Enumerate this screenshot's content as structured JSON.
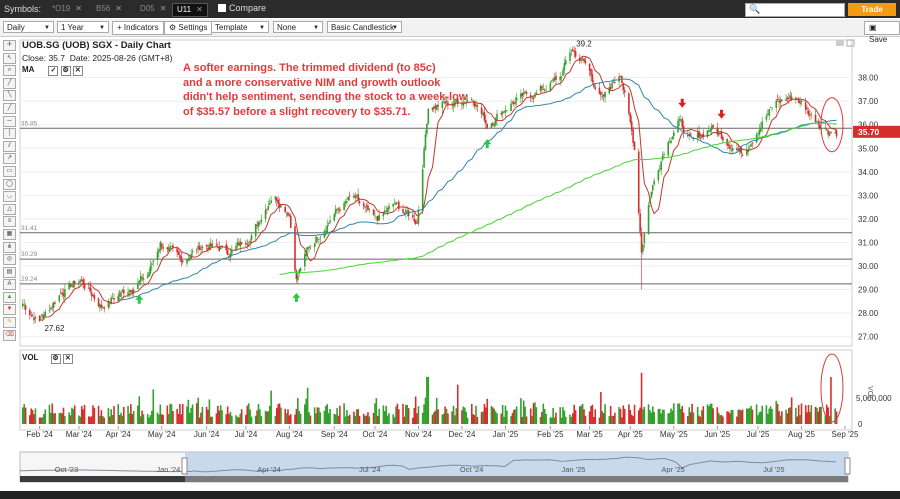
{
  "topbar": {
    "symbols_label": "Symbols:",
    "tabs": [
      {
        "label": "*O19",
        "active": false
      },
      {
        "label": "B56",
        "active": false
      },
      {
        "label": "D05",
        "active": false
      },
      {
        "label": "U11",
        "active": true
      }
    ],
    "compare_label": "Compare",
    "search_value": "",
    "trade_label": "Trade"
  },
  "toolbar": {
    "interval": "Daily",
    "range": "1 Year",
    "indicators_label": "Indicators",
    "settings_label": "Settings",
    "template": "Template",
    "overlay": "None",
    "chart_style": "Basic Candlestick",
    "save_label": "Save"
  },
  "chart_info": {
    "title": "UOB.SG (UOB) SGX - Daily Chart",
    "close": "Close: 35.7",
    "date": "Date: 2025-08-26 (GMT+8)",
    "ma_label": "MA"
  },
  "annotation": "A softer earnings. The trimmed dividend (to 85c)\nand a more conservative NIM and growth outlook\n didn't help sentiment, sending the stock to a week-low\nof $35.57 before a slight recovery to $35.71.",
  "colors": {
    "up": "#33a02c",
    "down": "#d62d2d",
    "ma_short": "#c0392b",
    "ma_mid": "#2e86ab",
    "ma_long": "#44d62c",
    "price_tag": "#d62d2d",
    "annotation": "#e03b3b"
  },
  "chart_data": [
    {
      "type": "candlestick",
      "title": "UOB.SG (UOB) SGX - Daily Chart",
      "y_ticks": [
        "27.00",
        "28.00",
        "29.00",
        "30.00",
        "31.00",
        "32.00",
        "33.00",
        "34.00",
        "35.00",
        "36.00",
        "37.00",
        "38.00"
      ],
      "ylim": [
        26.6,
        39.6
      ],
      "x_ticks": [
        "Feb '24",
        "Mar '24",
        "Apr '24",
        "May '24",
        "Jun '24",
        "Jul '24",
        "Aug '24",
        "Sep '24",
        "Oct '24",
        "Nov '24",
        "Dec '24",
        "Jan '25",
        "Feb '25",
        "Mar '25",
        "Apr '25",
        "May '25",
        "Jun '25",
        "Jul '25",
        "Aug '25",
        "Sep '25"
      ],
      "price_label": "35.70",
      "last_close": 35.7,
      "annotations": [
        {
          "text": "27.62",
          "value": 27.62
        },
        {
          "text": "39.2",
          "value": 39.2
        }
      ],
      "horizontal_levels": [
        {
          "label": "35.85",
          "value": 35.85
        },
        {
          "label": "31.41",
          "value": 31.41
        },
        {
          "label": "30.29",
          "value": 30.29
        },
        {
          "label": "29.24",
          "value": 29.24
        }
      ],
      "close_path": [
        [
          "2024-01-24",
          28.4
        ],
        [
          "2024-02-05",
          27.62
        ],
        [
          "2024-02-20",
          28.9
        ],
        [
          "2024-03-05",
          29.4
        ],
        [
          "2024-03-20",
          28.3
        ],
        [
          "2024-04-05",
          28.9
        ],
        [
          "2024-04-22",
          29.6
        ],
        [
          "2024-05-01",
          31.0
        ],
        [
          "2024-05-15",
          30.2
        ],
        [
          "2024-06-01",
          30.9
        ],
        [
          "2024-06-20",
          30.6
        ],
        [
          "2024-07-05",
          31.3
        ],
        [
          "2024-07-20",
          33.1
        ],
        [
          "2024-08-01",
          32.3
        ],
        [
          "2024-08-06",
          29.5
        ],
        [
          "2024-08-15",
          30.8
        ],
        [
          "2024-09-01",
          32.2
        ],
        [
          "2024-09-15",
          32.9
        ],
        [
          "2024-10-01",
          31.9
        ],
        [
          "2024-10-15",
          32.6
        ],
        [
          "2024-10-31",
          31.9
        ],
        [
          "2024-11-08",
          36.8
        ],
        [
          "2024-11-25",
          36.9
        ],
        [
          "2024-12-10",
          37.2
        ],
        [
          "2024-12-20",
          36.0
        ],
        [
          "2025-01-05",
          36.9
        ],
        [
          "2025-01-25",
          37.4
        ],
        [
          "2025-02-10",
          38.0
        ],
        [
          "2025-02-18",
          39.2
        ],
        [
          "2025-03-01",
          38.5
        ],
        [
          "2025-03-12",
          37.0
        ],
        [
          "2025-03-25",
          38.3
        ],
        [
          "2025-04-04",
          35.0
        ],
        [
          "2025-04-09",
          30.7
        ],
        [
          "2025-04-15",
          33.0
        ],
        [
          "2025-04-25",
          35.0
        ],
        [
          "2025-05-05",
          36.2
        ],
        [
          "2025-05-15",
          35.2
        ],
        [
          "2025-05-28",
          35.9
        ],
        [
          "2025-06-10",
          35.3
        ],
        [
          "2025-06-20",
          34.8
        ],
        [
          "2025-07-01",
          35.9
        ],
        [
          "2025-07-15",
          37.0
        ],
        [
          "2025-07-28",
          37.2
        ],
        [
          "2025-08-08",
          36.4
        ],
        [
          "2025-08-20",
          35.8
        ],
        [
          "2025-08-26",
          35.7
        ]
      ],
      "signals": [
        {
          "type": "buy",
          "date": "2024-04-16"
        },
        {
          "type": "buy",
          "date": "2024-08-06"
        },
        {
          "type": "buy",
          "date": "2024-12-20"
        },
        {
          "type": "sell",
          "date": "2025-05-08"
        },
        {
          "type": "sell",
          "date": "2025-06-05"
        }
      ]
    },
    {
      "type": "bar",
      "title": "VOL",
      "ylabel": "VOL",
      "y_ticks": [
        "0",
        "5,000,000"
      ],
      "ylim": [
        0,
        13000000
      ]
    }
  ],
  "navigator": {
    "labels": [
      "Oct '23",
      "Jan '24",
      "Apr '24",
      "Jul '24",
      "Oct '24",
      "Jan '25",
      "Apr '25",
      "Jul '25"
    ]
  }
}
